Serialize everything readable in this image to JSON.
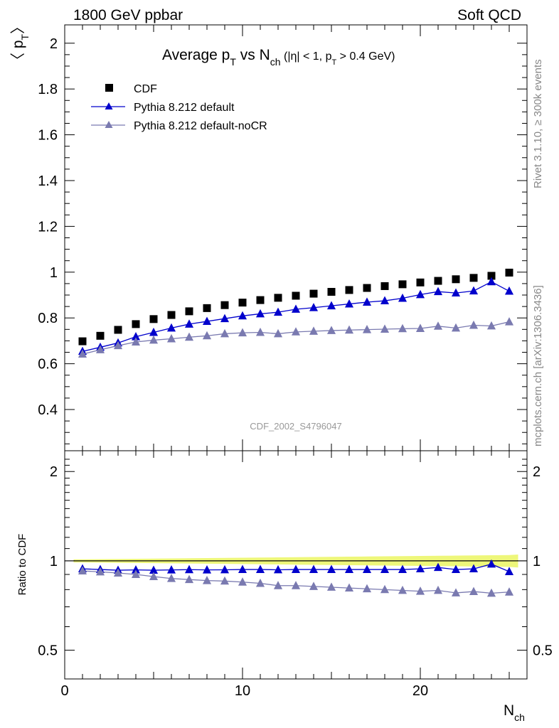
{
  "header": {
    "left": "1800 GeV ppbar",
    "right": "Soft QCD"
  },
  "side_text": {
    "rivet": "Rivet 3.1.10, ≥ 300k events",
    "mcplots": "mcplots.cern.ch [arXiv:1306.3436]"
  },
  "analysis_id": "CDF_2002_S4796047",
  "colors": {
    "cdf": "#000000",
    "default": "#0000cc",
    "nocr": "#7a7ab0",
    "band": "#eef77a"
  },
  "chart_data": [
    {
      "type": "scatter",
      "title_main": "Average p",
      "title_sub": "T",
      "title_mid": " vs N",
      "title_sub2": "ch",
      "title_cut": " (|η| < 1, p",
      "title_cut_sub": "T",
      "title_cut_end": " > 0.4 GeV)",
      "ylabel": "〈 p",
      "ylabel_sub": "T",
      "ylabel_end": "〉",
      "xlim": [
        0,
        26
      ],
      "ylim": [
        0.22,
        2.08
      ],
      "yticks": [
        "0.4",
        "0.6",
        "0.8",
        "1",
        "1.2",
        "1.4",
        "1.6",
        "1.8",
        "2"
      ],
      "x": [
        1,
        2,
        3,
        4,
        5,
        6,
        7,
        8,
        9,
        10,
        11,
        12,
        13,
        14,
        15,
        16,
        17,
        18,
        19,
        20,
        21,
        22,
        23,
        24,
        25
      ],
      "legend": [
        "CDF",
        "Pythia 8.212 default",
        "Pythia 8.212 default-noCR"
      ],
      "series": [
        {
          "name": "CDF",
          "values": [
            0.698,
            0.722,
            0.748,
            0.773,
            0.795,
            0.813,
            0.829,
            0.843,
            0.856,
            0.867,
            0.878,
            0.888,
            0.897,
            0.906,
            0.914,
            0.922,
            0.931,
            0.939,
            0.947,
            0.955,
            0.962,
            0.969,
            0.975,
            0.984,
            0.998
          ]
        },
        {
          "name": "Pythia 8.212 default",
          "values": [
            0.654,
            0.672,
            0.691,
            0.718,
            0.737,
            0.756,
            0.773,
            0.785,
            0.797,
            0.809,
            0.818,
            0.825,
            0.838,
            0.845,
            0.853,
            0.861,
            0.869,
            0.875,
            0.886,
            0.902,
            0.915,
            0.909,
            0.918,
            0.958,
            0.917
          ]
        },
        {
          "name": "Pythia 8.212 default-noCR",
          "values": [
            0.642,
            0.661,
            0.679,
            0.695,
            0.703,
            0.709,
            0.716,
            0.722,
            0.731,
            0.735,
            0.737,
            0.731,
            0.739,
            0.742,
            0.745,
            0.747,
            0.749,
            0.751,
            0.753,
            0.754,
            0.764,
            0.756,
            0.768,
            0.765,
            0.783
          ]
        }
      ]
    },
    {
      "type": "line",
      "ylabel": "Ratio to CDF",
      "xlabel": "N",
      "xlabel_sub": "ch",
      "xlim": [
        0,
        26
      ],
      "ylim": [
        0.4,
        2.35
      ],
      "log_y": true,
      "yticks": [
        "0.5",
        "1",
        "2"
      ],
      "xticks": [
        "0",
        "10",
        "20"
      ],
      "x": [
        1,
        2,
        3,
        4,
        5,
        6,
        7,
        8,
        9,
        10,
        11,
        12,
        13,
        14,
        15,
        16,
        17,
        18,
        19,
        20,
        21,
        22,
        23,
        24,
        25
      ],
      "series": [
        {
          "name": "Pythia 8.212 default",
          "values": [
            0.94,
            0.935,
            0.93,
            0.932,
            0.93,
            0.932,
            0.934,
            0.932,
            0.933,
            0.935,
            0.935,
            0.933,
            0.935,
            0.935,
            0.935,
            0.935,
            0.935,
            0.935,
            0.935,
            0.94,
            0.95,
            0.935,
            0.94,
            0.975,
            0.92
          ]
        },
        {
          "name": "Pythia 8.212 default-noCR",
          "values": [
            0.925,
            0.918,
            0.91,
            0.9,
            0.885,
            0.872,
            0.865,
            0.858,
            0.855,
            0.848,
            0.84,
            0.825,
            0.825,
            0.82,
            0.815,
            0.81,
            0.805,
            0.8,
            0.795,
            0.79,
            0.795,
            0.78,
            0.788,
            0.778,
            0.785
          ]
        }
      ]
    }
  ]
}
